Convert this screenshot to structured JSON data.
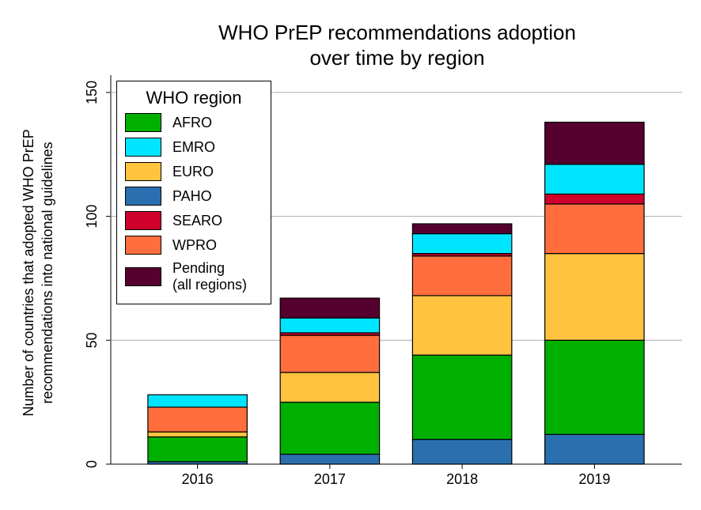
{
  "chart_data": {
    "type": "stacked_bar",
    "title": [
      "WHO PrEP recommendations adoption",
      "over time by region"
    ],
    "ylabel": [
      "Number of countries that adopted WHO PrEP",
      "recommendations into national guidelines"
    ],
    "categories": [
      "2016",
      "2017",
      "2018",
      "2019"
    ],
    "legend_title": "WHO region",
    "series": [
      {
        "name": "AFRO",
        "color": "#00b000",
        "values": [
          10,
          21,
          34,
          38
        ]
      },
      {
        "name": "EMRO",
        "color": "#00e5ff",
        "values": [
          5,
          6,
          8,
          12
        ]
      },
      {
        "name": "EURO",
        "color": "#ffc340",
        "values": [
          2,
          12,
          24,
          35
        ]
      },
      {
        "name": "PAHO",
        "color": "#2a6faf",
        "values": [
          1,
          4,
          10,
          12
        ]
      },
      {
        "name": "SEARO",
        "color": "#d0002c",
        "values": [
          0,
          1,
          1,
          4
        ]
      },
      {
        "name": "WPRO",
        "color": "#ff6e3c",
        "values": [
          10,
          15,
          16,
          20
        ]
      },
      {
        "name": "Pending\n(all regions)",
        "color": "#560030",
        "values": [
          0,
          8,
          4,
          17
        ]
      }
    ],
    "ylim": [
      0,
      157
    ],
    "yticks": [
      0,
      50,
      100,
      150
    ],
    "grid": true,
    "legend": "upper left"
  }
}
